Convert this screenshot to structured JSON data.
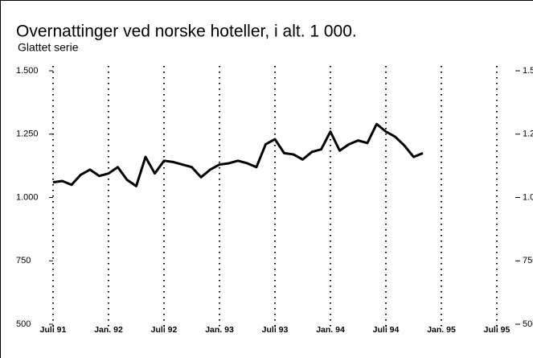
{
  "chart_data": {
    "type": "line",
    "title": "Overnattinger ved norske hoteller, i alt. 1 000.",
    "subtitle": "Glattet serie",
    "categories": [
      "Juli 91",
      null,
      null,
      null,
      null,
      null,
      "Jan. 92",
      null,
      null,
      null,
      null,
      null,
      "Juli 92",
      null,
      null,
      null,
      null,
      null,
      "Jan. 93",
      null,
      null,
      null,
      null,
      null,
      "Juli 93",
      null,
      null,
      null,
      null,
      null,
      "Jan. 94",
      null,
      null,
      null,
      null,
      null,
      "Juli 94",
      null,
      null,
      null,
      null,
      null,
      "Jan. 95",
      null,
      null,
      null,
      null,
      null,
      "Juli 95"
    ],
    "series": [
      {
        "color": "#000000",
        "values": [
          1060,
          1065,
          1050,
          1090,
          1110,
          1085,
          1095,
          1120,
          1070,
          1045,
          1160,
          1095,
          1145,
          1140,
          1130,
          1120,
          1080,
          1110,
          1130,
          1135,
          1145,
          1135,
          1120,
          1210,
          1230,
          1175,
          1170,
          1150,
          1180,
          1190,
          1260,
          1185,
          1210,
          1225,
          1215,
          1290,
          1260,
          1240,
          1205,
          1160,
          1175,
          null,
          null,
          null,
          null,
          null,
          null,
          null,
          null
        ]
      }
    ],
    "ylim": [
      500,
      1500
    ],
    "yticks": [
      {
        "value": 500,
        "label": "500"
      },
      {
        "value": 750,
        "label": "750"
      },
      {
        "value": 1000,
        "label": "1.000"
      },
      {
        "value": 1250,
        "label": "1.250"
      },
      {
        "value": 1500,
        "label": "1.500"
      }
    ],
    "grid": true
  }
}
